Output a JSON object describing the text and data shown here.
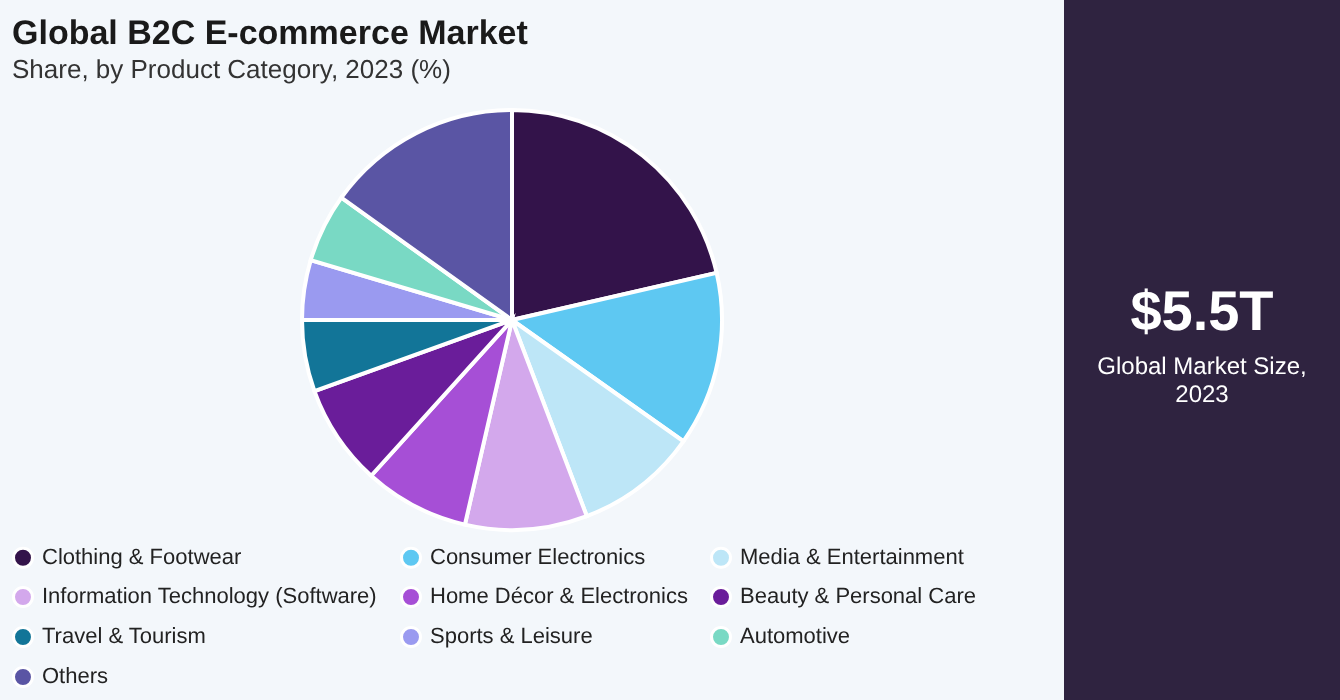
{
  "chart_data": {
    "type": "pie",
    "title": "Global B2C E-commerce Market",
    "subtitle": "Share, by Product Category, 2023 (%)",
    "categories": [
      "Clothing & Footwear",
      "Consumer Electronics",
      "Media & Entertainment",
      "Information Technology (Software)",
      "Home Décor & Electronics",
      "Beauty & Personal Care",
      "Travel & Tourism",
      "Sports & Leisure",
      "Automotive",
      "Others"
    ],
    "values": [
      21.4,
      13.4,
      9.4,
      9.4,
      8.1,
      7.8,
      5.5,
      4.6,
      5.3,
      15.1
    ],
    "colors": [
      "#33134a",
      "#5ec8f2",
      "#bde6f7",
      "#d3a8ec",
      "#a64fd6",
      "#6a1d9a",
      "#127598",
      "#9a9af0",
      "#79d9c4",
      "#5a55a4"
    ],
    "legend": "bottom",
    "annotations": [
      "$5.5T",
      "Global Market Size, 2023"
    ]
  }
}
